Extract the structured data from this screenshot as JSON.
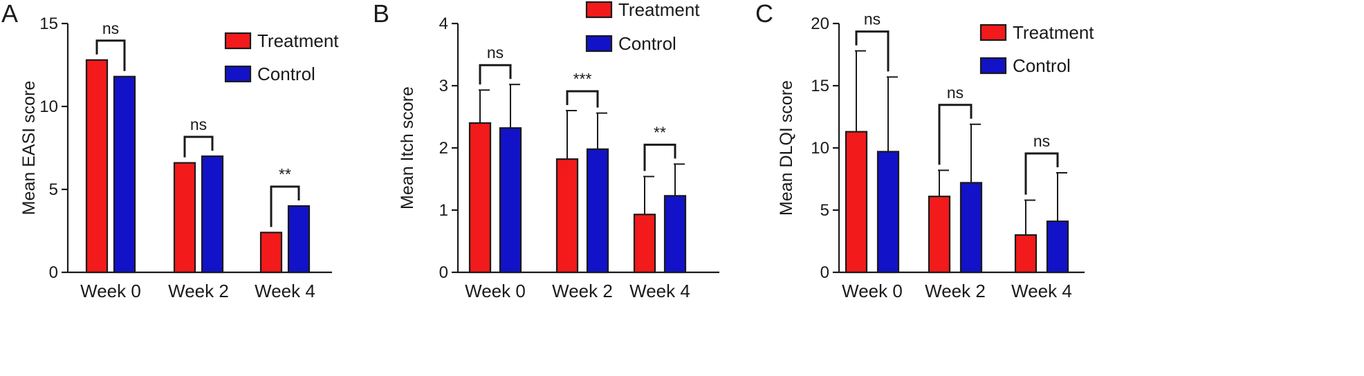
{
  "colors": {
    "treatment": "#f21a1a",
    "control": "#1212c8",
    "outline": "#1a1a1a"
  },
  "legend": [
    "Treatment",
    "Control"
  ],
  "chart_data": [
    {
      "panel": "A",
      "type": "bar",
      "ylabel": "Mean EASI score",
      "ylim": [
        0,
        15
      ],
      "yticks": [
        0,
        5,
        10,
        15
      ],
      "categories": [
        "Week 0",
        "Week 2",
        "Week 4"
      ],
      "series": [
        {
          "name": "Treatment",
          "values": [
            12.8,
            6.6,
            2.4
          ],
          "errors": null
        },
        {
          "name": "Control",
          "values": [
            11.8,
            7.0,
            4.0
          ],
          "errors": null
        }
      ],
      "significance": [
        "ns",
        "ns",
        "**"
      ],
      "legend_position": "top-right"
    },
    {
      "panel": "B",
      "type": "bar",
      "ylabel": "Mean Itch score",
      "ylim": [
        0,
        4
      ],
      "yticks": [
        0,
        1,
        2,
        3,
        4
      ],
      "categories": [
        "Week 0",
        "Week 2",
        "Week 4"
      ],
      "series": [
        {
          "name": "Treatment",
          "values": [
            2.4,
            1.82,
            0.93
          ],
          "errors": [
            0.53,
            0.78,
            0.61
          ]
        },
        {
          "name": "Control",
          "values": [
            2.32,
            1.98,
            1.23
          ],
          "errors": [
            0.7,
            0.58,
            0.51
          ]
        }
      ],
      "significance": [
        "ns",
        "***",
        "**"
      ],
      "legend_position": "top-right"
    },
    {
      "panel": "C",
      "type": "bar",
      "ylabel": "Mean DLQI score",
      "ylim": [
        0,
        20
      ],
      "yticks": [
        0,
        5,
        10,
        15,
        20
      ],
      "categories": [
        "Week 0",
        "Week 2",
        "Week 4"
      ],
      "series": [
        {
          "name": "Treatment",
          "values": [
            11.3,
            6.1,
            3.0
          ],
          "errors": [
            6.5,
            2.1,
            2.8
          ]
        },
        {
          "name": "Control",
          "values": [
            9.7,
            7.2,
            4.1
          ],
          "errors": [
            6.0,
            4.7,
            3.9
          ]
        }
      ],
      "significance": [
        "ns",
        "ns",
        "ns"
      ],
      "legend_position": "top-right"
    }
  ]
}
